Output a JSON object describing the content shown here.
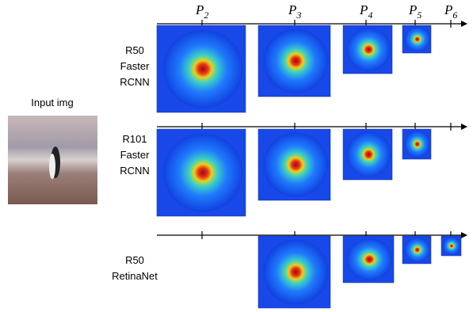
{
  "columns": [
    {
      "base": "P",
      "sub": "2"
    },
    {
      "base": "P",
      "sub": "3"
    },
    {
      "base": "P",
      "sub": "4"
    },
    {
      "base": "P",
      "sub": "5"
    },
    {
      "base": "P",
      "sub": "6"
    }
  ],
  "input_label": "Input img",
  "rows": [
    {
      "lines": [
        "R50",
        "Faster",
        "RCNN"
      ]
    },
    {
      "lines": [
        "R101",
        "Faster",
        "RCNN"
      ]
    },
    {
      "lines": [
        "R50",
        "RetinaNet"
      ]
    }
  ]
}
